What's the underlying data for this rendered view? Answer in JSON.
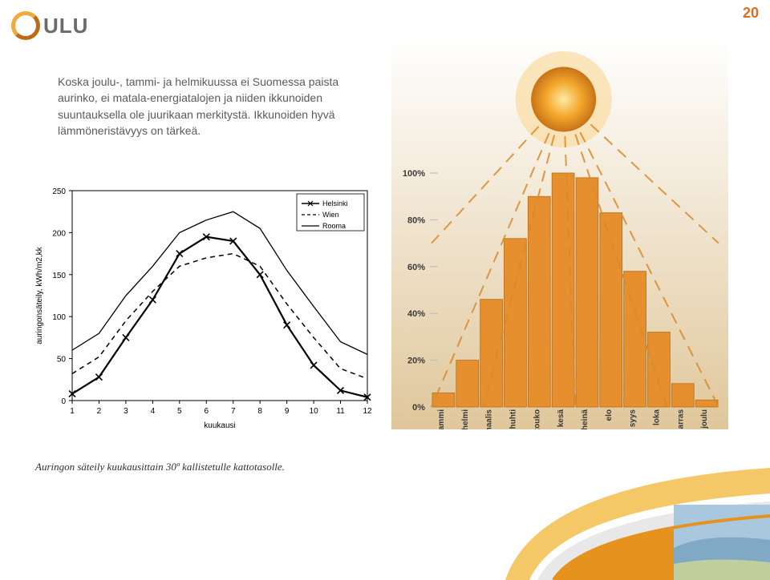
{
  "pagenum": {
    "value": "20",
    "color": "#d96f1f",
    "fontsize": 18
  },
  "logo": {
    "ring_gradient_top": "#f3a93c",
    "ring_gradient_bottom": "#c06a15",
    "text": "ULU",
    "text_color": "#6d6d6d"
  },
  "body_text": {
    "content": "Koska joulu-, tammi- ja helmikuussa ei Suomessa paista aurinko, ei matala-energiatalojen ja niiden ikkunoiden suuntauksella ole juurikaan merkitystä. Ikkunoiden hyvä lämmöneristävyys on tärkeä.",
    "color": "#5a5a5a",
    "fontsize": 14
  },
  "linechart": {
    "type": "line",
    "xlabel": "kuukausi",
    "ylabel": "auringonsäteily, kWh/m2,kk",
    "label_fontsize": 10,
    "axis_color": "#000000",
    "grid_color": "#e8e8e8",
    "background_color": "#ffffff",
    "xlim": [
      1,
      12
    ],
    "xticks": [
      1,
      2,
      3,
      4,
      5,
      6,
      7,
      8,
      9,
      10,
      11,
      12
    ],
    "ylim": [
      0,
      250
    ],
    "yticks": [
      0,
      50,
      100,
      150,
      200,
      250
    ],
    "legend": {
      "position": "top-right",
      "border_color": "#000000",
      "items": [
        {
          "label": "Helsinki",
          "style": "solid-x",
          "color": "#000000"
        },
        {
          "label": "Wien",
          "style": "dashed",
          "color": "#000000"
        },
        {
          "label": "Rooma",
          "style": "solid",
          "color": "#000000"
        }
      ]
    },
    "series": {
      "helsinki": {
        "marker": "x",
        "line": "solid",
        "line_width": 2.2,
        "color": "#000000",
        "values": [
          8,
          28,
          75,
          120,
          175,
          195,
          190,
          150,
          90,
          42,
          12,
          4
        ]
      },
      "wien": {
        "marker": "none",
        "line": "dashed",
        "dash": "6 5",
        "line_width": 1.5,
        "color": "#000000",
        "values": [
          32,
          52,
          95,
          130,
          160,
          170,
          175,
          160,
          115,
          75,
          38,
          26
        ]
      },
      "rooma": {
        "marker": "none",
        "line": "solid",
        "line_width": 1.3,
        "color": "#000000",
        "values": [
          60,
          80,
          125,
          160,
          200,
          215,
          225,
          205,
          155,
          112,
          70,
          55
        ]
      }
    },
    "caption": "Auringon säteily kuukausittain 30º kallistetulle kattotasolle.",
    "caption_fontsize": 13,
    "caption_color": "#303030"
  },
  "sunchart": {
    "type": "bar",
    "background_gradient_top": "#ffffff",
    "background_gradient_bottom": "#e0c79b",
    "sun_core_color": "#f3a72a",
    "sun_halo_color": "#f9dca1",
    "sun_edge_color": "#c87418",
    "ray_color": "#d88a2b",
    "ray_dash": "14 9",
    "ray_width": 2,
    "bar_color": "#e58f2e",
    "bar_border_color": "#b46c1b",
    "axis_stub_color": "#b9b9b9",
    "y_ticks": [
      "0%",
      "20%",
      "40%",
      "60%",
      "80%",
      "100%"
    ],
    "y_max_pct": 100,
    "label_color": "#3a3a3a",
    "label_fontsize": 11,
    "month_label_fontsize": 10,
    "months": [
      "tammi",
      "helmi",
      "maalis",
      "huhti",
      "touko",
      "kesä",
      "heinä",
      "elo",
      "syys",
      "loka",
      "marras",
      "joulu"
    ],
    "values_pct": [
      6,
      20,
      46,
      72,
      90,
      100,
      98,
      83,
      58,
      32,
      10,
      3
    ]
  },
  "deco": {
    "outer_curve_color": "#f4c257",
    "inner_curve_color": "#e6921e",
    "shadow_color": "#d8d8d8",
    "thumb_sky": "#a9c8de",
    "thumb_land": "#bfcf9e",
    "thumb_water": "#7fa9c4"
  }
}
